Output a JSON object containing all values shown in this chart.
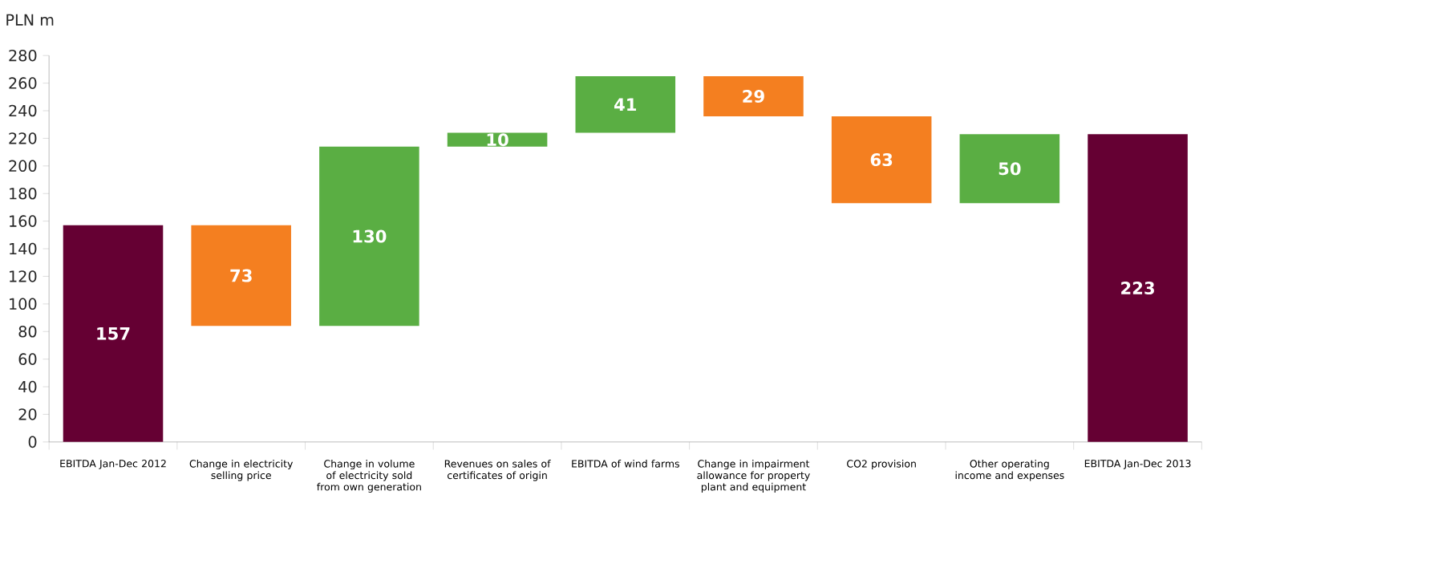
{
  "chart_data": {
    "type": "bar",
    "ylabel": "PLN m",
    "categories": [
      "EBITDA Jan-Dec 2012",
      "Change in electricity selling price",
      "Change in volume of electricity sold from own generation",
      "Revenues on sales of certificates of origin",
      "EBITDA of wind farms",
      "Change in impairment allowance for property plant and equipment",
      "CO2 provision",
      "Other operating income and expenses",
      "EBITDA Jan-Dec 2013"
    ],
    "values": [
      157,
      73,
      130,
      10,
      41,
      29,
      63,
      50,
      223
    ],
    "base": [
      0,
      84,
      84,
      214,
      224,
      236,
      173,
      173,
      0
    ],
    "colors": [
      "#650033",
      "#f47f20",
      "#5aae43",
      "#5aae43",
      "#5aae43",
      "#f47f20",
      "#f47f20",
      "#5aae43",
      "#650033"
    ],
    "ylim": [
      0,
      280
    ],
    "yticks": [
      0,
      20,
      40,
      60,
      80,
      100,
      120,
      140,
      160,
      180,
      200,
      220,
      240,
      260,
      280
    ],
    "data_labels": true
  }
}
